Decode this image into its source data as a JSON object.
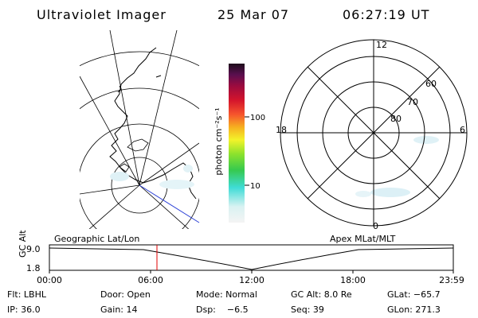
{
  "header": {
    "instrument": "Ultraviolet Imager",
    "date": "25 Mar 07",
    "time": "06:27:19 UT"
  },
  "colorbar": {
    "label": "photon cm⁻²s⁻¹",
    "tick_labels": [
      "100",
      "10"
    ],
    "colors": [
      "#f4f4f4",
      "#d9f2f2",
      "#3fdcd6",
      "#36c94f",
      "#8be22d",
      "#f3f32a",
      "#f6b020",
      "#f6552d",
      "#d4142c",
      "#9b0b3f",
      "#5a0f4f",
      "#1d0e1b"
    ]
  },
  "polar_plot": {
    "clock_labels": [
      "12",
      "18",
      "6",
      "0"
    ],
    "lat_labels": [
      "60",
      "70",
      "80"
    ]
  },
  "timeline": {
    "left_label": "Geographic Lat/Lon",
    "right_label": "Apex MLat/MLT",
    "axis_title": "GC Alt",
    "y_ticks": [
      "9.0",
      "1.8"
    ],
    "x_ticks": [
      "00:00",
      "06:00",
      "12:00",
      "18:00",
      "23:59"
    ],
    "marker_color": "#e00000"
  },
  "info": {
    "flt": "Flt: LBHL",
    "door": "Door: Open",
    "mode": "Mode: Normal",
    "gc_alt": "GC Alt: 8.0 Re",
    "glat": "GLat: −65.7",
    "ip": "IP: 36.0",
    "gain": "Gain: 14",
    "dsp": "Dsp:    −6.5",
    "seq": "Seq: 39",
    "glon": "GLon: 271.3"
  }
}
